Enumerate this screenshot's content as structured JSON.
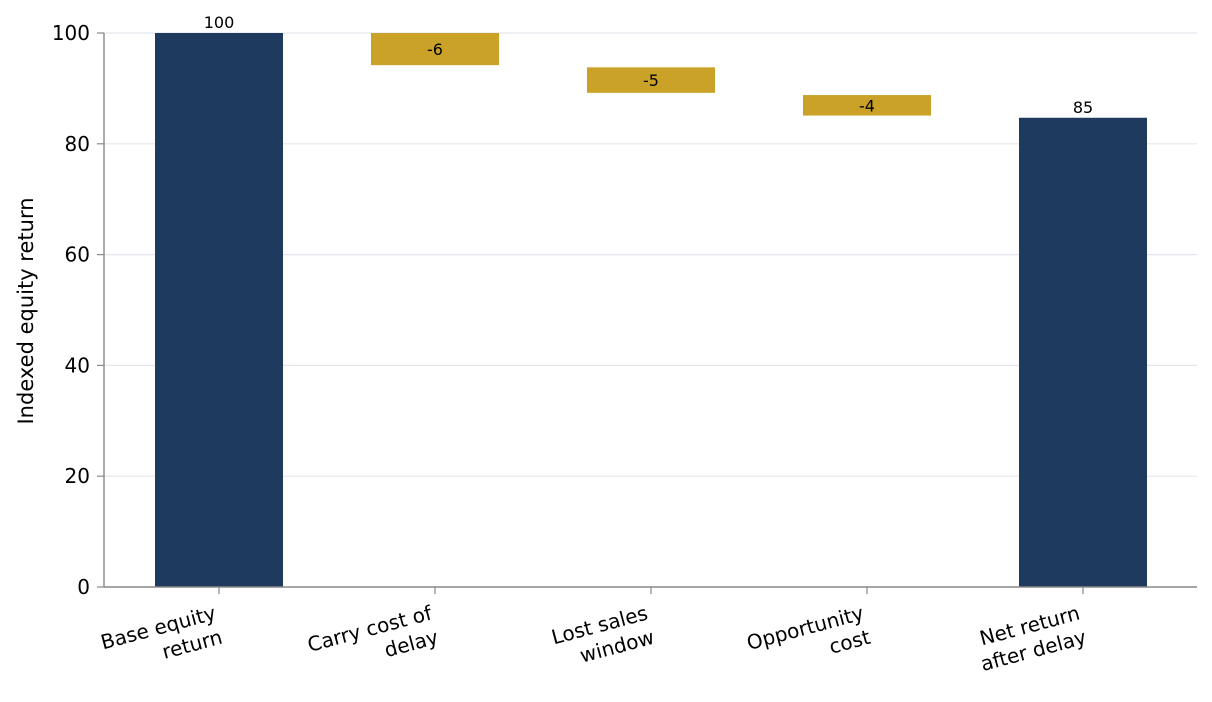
{
  "chart_data": {
    "type": "bar",
    "subtype": "waterfall",
    "title": "",
    "xlabel": "",
    "ylabel": "Indexed equity return",
    "ylim": [
      0,
      100
    ],
    "yticks": [
      0,
      20,
      40,
      60,
      80,
      100
    ],
    "grid": "horizontal",
    "categories": [
      [
        "Base equity",
        "return"
      ],
      [
        "Carry cost of",
        "delay"
      ],
      [
        "Lost sales",
        "window"
      ],
      [
        "Opportunity",
        "cost"
      ],
      [
        "Net return",
        "after delay"
      ]
    ],
    "bars": [
      {
        "kind": "total",
        "start": 0,
        "end": 100,
        "label": "100"
      },
      {
        "kind": "delta",
        "start": 100,
        "end": 94.2,
        "label": "-6"
      },
      {
        "kind": "delta",
        "start": 93.8,
        "end": 89.2,
        "label": "-5"
      },
      {
        "kind": "delta",
        "start": 88.8,
        "end": 85.1,
        "label": "-4"
      },
      {
        "kind": "total",
        "start": 0,
        "end": 84.7,
        "label": "85"
      }
    ],
    "colors": {
      "total": "#1f3a5f",
      "delta": "#c9a227",
      "grid": "#e3e6ee",
      "axis": "#888888"
    }
  }
}
